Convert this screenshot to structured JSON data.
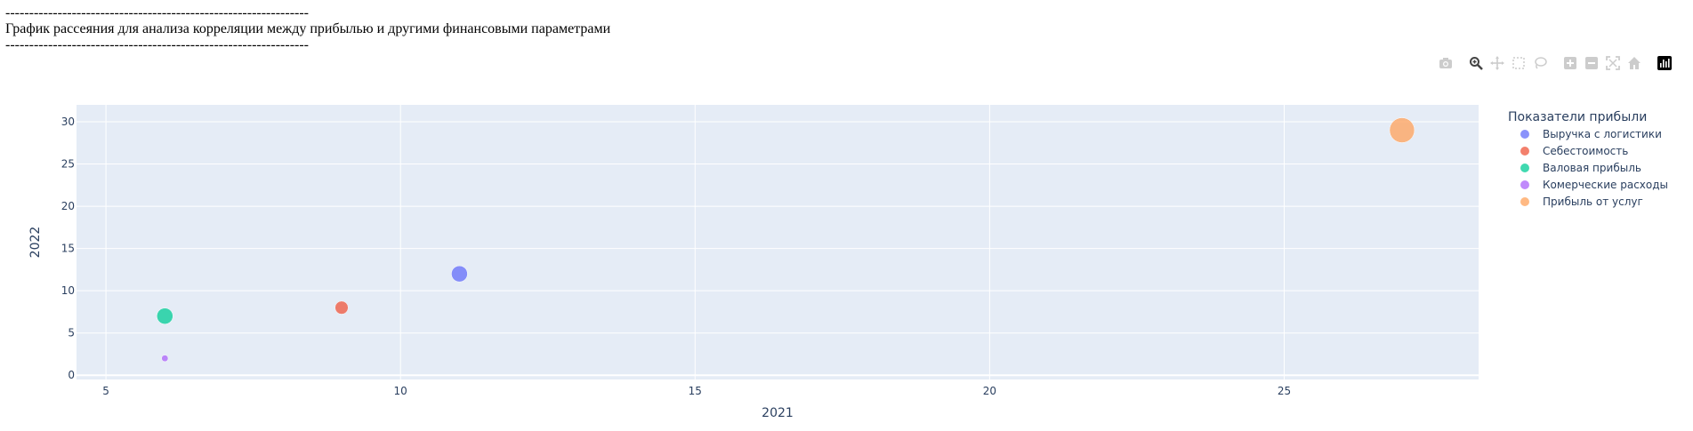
{
  "heading": {
    "rule_top": "----------------------------------------------------------------",
    "title": "График рассеяния для анализа корреляции между прибылью и другими финансовыми параметрами",
    "rule_bottom": "----------------------------------------------------------------"
  },
  "modebar": {
    "items": [
      "camera-icon",
      "zoom-icon",
      "pan-icon",
      "box-select-icon",
      "lasso-select-icon",
      "zoom-in-icon",
      "zoom-out-icon",
      "autoscale-icon",
      "reset-axes-icon",
      "plotly-logo-icon"
    ]
  },
  "colors": {
    "plot_bg": "#e5ecf6",
    "grid": "#ffffff",
    "text": "#2a3f5f",
    "modebar_icon": "#cccccc"
  },
  "chart_data": {
    "type": "scatter",
    "title": "",
    "xlabel": "2021",
    "ylabel": "2022",
    "xlim": [
      4.5,
      28.3
    ],
    "ylim": [
      -0.5,
      32
    ],
    "xticks": [
      5,
      10,
      15,
      20,
      25
    ],
    "yticks": [
      0,
      5,
      10,
      15,
      20,
      25,
      30
    ],
    "grid": true,
    "legend_title": "Показатели прибыли",
    "legend_position": "top-right",
    "series": [
      {
        "name": "Выручка с логистики",
        "color": "#636efa",
        "points": [
          {
            "x": 11,
            "y": 12,
            "size": 12
          }
        ]
      },
      {
        "name": "Себестоимость",
        "color": "#ef553b",
        "points": [
          {
            "x": 9,
            "y": 8,
            "size": 8
          }
        ]
      },
      {
        "name": "Валовая прибыль",
        "color": "#00cc96",
        "points": [
          {
            "x": 6,
            "y": 7,
            "size": 12
          }
        ]
      },
      {
        "name": "Комерческие расходы",
        "color": "#ab63fa",
        "points": [
          {
            "x": 6,
            "y": 2,
            "size": 2
          }
        ]
      },
      {
        "name": "Прибыль от услуг",
        "color": "#ffa15a",
        "points": [
          {
            "x": 27,
            "y": 29,
            "size": 29
          }
        ]
      }
    ]
  }
}
